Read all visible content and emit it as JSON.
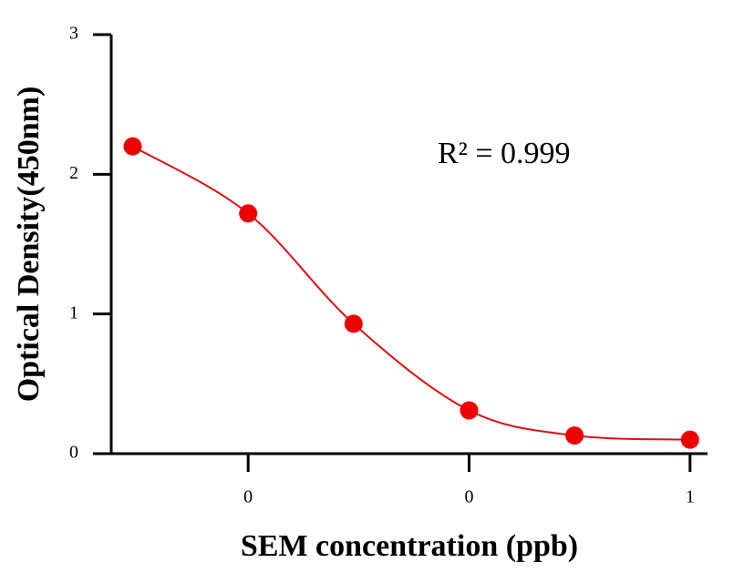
{
  "chart_data": {
    "type": "scatter",
    "x_label": "SEM concentration (ppb)",
    "y_label": "Optical Density(450nm)",
    "annotation": "R² = 0.999",
    "x": [
      0.003,
      0.01,
      0.03,
      0.1,
      0.3,
      1
    ],
    "values": [
      2.2,
      1.72,
      0.93,
      0.31,
      0.13,
      0.1
    ],
    "color": "#ee0000",
    "line_color": "#dd1111",
    "x_log": true,
    "xlim": [
      0.0024,
      1.2
    ],
    "xticks": [
      {
        "value": 0.01,
        "label": "0"
      },
      {
        "value": 0.1,
        "label": "0"
      },
      {
        "value": 1,
        "label": "1"
      }
    ],
    "ylim": [
      0,
      3
    ],
    "yticks": [
      0,
      1,
      2,
      3
    ]
  }
}
